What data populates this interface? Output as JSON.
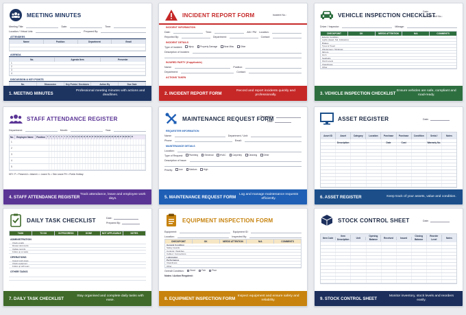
{
  "colors": {
    "navy": "#1d3461",
    "red": "#c62828",
    "green": "#2e6f40",
    "purple": "#5b3595",
    "blue": "#1f5fb5",
    "teal": "#1c4f8a",
    "olive": "#3f6a2a",
    "orange": "#c7830e",
    "darknavy": "#1c2f5c"
  },
  "cards": [
    {
      "title": "MEETING MINUTES",
      "icon": "meeting-icon",
      "footer_title": "1. MEETING MINUTES",
      "footer_desc": "Professional meeting minutes with actions and deadlines.",
      "meta": {
        "title_lbl": "Meeting Title:",
        "date_lbl": "Date:",
        "time_lbl": "Time:",
        "location_lbl": "Location / Virtual Link:",
        "prepared_lbl": "Prepared By:"
      },
      "sections": {
        "attendees": "ATTENDEES",
        "agenda": "AGENDA",
        "discussion": "DISCUSSION & KEY POINTS"
      },
      "att_cols": [
        "Name",
        "Position",
        "Department",
        "Email"
      ],
      "agenda_cols": [
        "No.",
        "Agenda Item",
        "Presenter"
      ],
      "agenda_rows": [
        "1",
        "2",
        "3",
        "4"
      ],
      "disc_cols": [
        "No.",
        "Discussion",
        "Key Points / Decisions",
        "Action By",
        "Due Date"
      ]
    },
    {
      "title": "INCIDENT REPORT FORM",
      "icon": "warning-icon",
      "footer_title": "2. INCIDENT REPORT FORM",
      "footer_desc": "Record and report incidents quickly and professionally.",
      "meta": {
        "incident_no": "Incident No.:"
      },
      "sections": {
        "info": "INCIDENT INFORMATION",
        "details": "INCIDENT DETAILS",
        "injured": "INJURED PARTY (if applicable)",
        "actions": "ACTIONS TAKEN"
      },
      "info_fields": [
        "Date:",
        "Time:",
        "AM / PM",
        "Location:",
        "Reported By:",
        "Department:",
        "Contact:"
      ],
      "type_lbl": "Type of Incident:",
      "types": [
        "Injury",
        "Property Damage",
        "Near Miss",
        "Other"
      ],
      "desc_lbl": "Description of Incident:",
      "injured_fields": [
        "Name:",
        "Position:",
        "Department:",
        "Contact:"
      ]
    },
    {
      "title": "VEHICLE INSPECTION CHECKLIST",
      "icon": "car-icon",
      "footer_title": "3. VEHICLE INSPECTION CHECKLIST",
      "footer_desc": "Ensure vehicles are safe, compliant and road-ready.",
      "meta": {
        "date_lbl": "Date:",
        "vehicle_lbl": "Vehicle / Unit No.:",
        "driver_lbl": "Driver / Inspector:",
        "mileage_lbl": "Mileage:"
      },
      "cols": [
        "CHECKPOINT",
        "OK",
        "NEEDS ATTENTION",
        "N/A",
        "COMMENTS"
      ],
      "rows": [
        "Exterior Condition",
        "Lights (Head, Tail, Indicators)",
        "Brakes",
        "Tyres & Tread",
        "Windscreen / Windows",
        "Mirrors",
        "Horn",
        "Seatbelts",
        "Fluid Levels",
        "Cleanliness",
        "Other"
      ]
    },
    {
      "title": "STAFF ATTENDANCE REGISTER",
      "icon": "people-icon",
      "footer_title": "4. STAFF ATTENDANCE REGISTER",
      "footer_desc": "Track attendance, leave and employee work days.",
      "meta": {
        "dept_lbl": "Department:",
        "month_lbl": "Month:",
        "year_lbl": "Year:"
      },
      "cols": [
        "No.",
        "Employee Name",
        "Position"
      ],
      "days": [
        "1",
        "2",
        "3",
        "4",
        "5",
        "6",
        "7",
        "8",
        "9",
        "10",
        "11",
        "12",
        "13",
        "14",
        "15",
        "16",
        "17",
        "18",
        "19",
        "20",
        "21",
        "22",
        "23",
        "24",
        "25",
        "26",
        "27",
        "28",
        "29",
        "30",
        "31"
      ],
      "rows": [
        "1",
        "2",
        "3",
        "4",
        "5"
      ],
      "key": "KEY:  P = Present     A = Absent     L = Leave     SL = Sick Leave     PH = Public Holiday"
    },
    {
      "title": "MAINTENANCE REQUEST FORM",
      "icon": "tools-icon",
      "footer_title": "5. MAINTENANCE REQUEST FORM",
      "footer_desc": "Log and manage maintenance requests efficiently.",
      "meta": {
        "req_no": "Request No.:",
        "date_lbl": "Date:"
      },
      "sections": {
        "requester": "REQUESTER INFORMATION",
        "details": "MAINTENANCE DETAILS"
      },
      "req_fields": [
        "Name:",
        "Department / Unit:",
        "Phone:",
        "Email:"
      ],
      "location_lbl": "Location:",
      "type_lbl": "Type of Request:",
      "types": [
        "Plumbing",
        "Electrical",
        "HVAC",
        "Carpentry",
        "Cleaning",
        "Other"
      ],
      "desc_lbl": "Description of Issue:",
      "priority_lbl": "Priority:",
      "priorities": [
        "Low",
        "Medium",
        "High"
      ]
    },
    {
      "title": "ASSET REGISTER",
      "icon": "monitor-icon",
      "footer_title": "6. ASSET REGISTER",
      "footer_desc": "Keep track of your assets, value and condition.",
      "meta": {
        "date_lbl": "Date:"
      },
      "cols": [
        "Asset ID",
        "Asset Description",
        "Category",
        "Location",
        "Purchase Date",
        "Purchase Cost",
        "Condition",
        "Serial / Warranty No.",
        "Notes"
      ]
    },
    {
      "title": "DAILY TASK CHECKLIST",
      "icon": "clipboard-check-icon",
      "footer_title": "7. DAILY TASK CHECKLIST",
      "footer_desc": "Stay organised and complete daily tasks with ease.",
      "meta": {
        "date_lbl": "Date:",
        "prepared_lbl": "Prepared By:"
      },
      "cols": [
        "TASK",
        "TO DO",
        "IN PROGRESS",
        "DONE",
        "NOT APPLICABLE",
        "NOTES"
      ],
      "sections": [
        "ADMINISTRATION",
        "OPERATIONS",
        "OTHER TASKS"
      ],
      "admin_rows": [
        "Check emails",
        "Review documents",
        "Update records",
        "Follow up on tasks"
      ],
      "ops_rows": [
        "Inspect work areas",
        "Check equipment",
        "Follow up with team"
      ]
    },
    {
      "title": "EQUIPMENT INSPECTION FORM",
      "icon": "clipboard-icon",
      "footer_title": "8. EQUIPMENT INSPECTION FORM",
      "footer_desc": "Inspect equipment and ensure safety and reliability.",
      "meta": {
        "equipment_lbl": "Equipment:",
        "equipment_id_lbl": "Equipment ID:",
        "location_lbl": "Location:",
        "inspected_lbl": "Inspected By:",
        "date_lbl": "Date:"
      },
      "cols": [
        "CHECKPOINT",
        "OK",
        "NEEDS ATTENTION",
        "N/A",
        "COMMENTS"
      ],
      "rows": [
        "General Condition",
        "Safety Guards",
        "Controls / Switches",
        "Cables / Connections",
        "Lubrication",
        "Performance",
        "Cleanliness",
        "Other"
      ],
      "bold_rows": [
        "General Condition",
        "Lubrication",
        "Performance"
      ],
      "overall_lbl": "Overall Condition:",
      "overall": [
        "Good",
        "Fair",
        "Poor"
      ],
      "notes_lbl": "Notes / Action Required:"
    },
    {
      "title": "STOCK CONTROL SHEET",
      "icon": "box-icon",
      "footer_title": "9. STOCK CONTROL SHEET",
      "footer_desc": "Monitor inventory, stock levels and reorders easily.",
      "meta": {
        "date_lbl": "Date:"
      },
      "cols": [
        "Item Code",
        "Item Description",
        "Unit",
        "Opening Balance",
        "Received",
        "Issued",
        "Closing Balance",
        "Reorder Level",
        "Notes"
      ]
    }
  ]
}
